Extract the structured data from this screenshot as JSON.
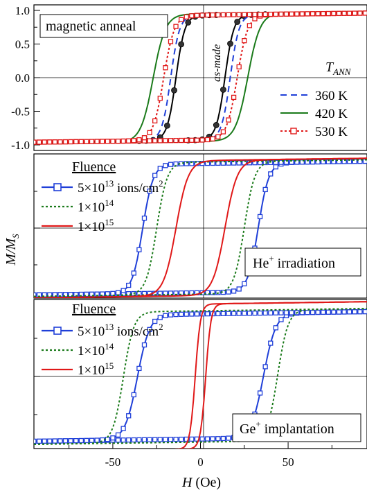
{
  "figure": {
    "ylabel_main": "M/M",
    "ylabel_sub": "S",
    "xlabel_main": "H",
    "xlabel_unit": " (Oe)",
    "colors": {
      "blue": "#1f3fd8",
      "green": "#1a7a1a",
      "red": "#e01818",
      "black": "#000000"
    }
  },
  "chart_data": [
    {
      "type": "line",
      "panel": "top",
      "annotation": "magnetic anneal",
      "curve_label": "as-made",
      "legend_title_main": "T",
      "legend_title_sub": "ANN",
      "xlim": [
        -95,
        95
      ],
      "ylim": [
        -1.05,
        1.05
      ],
      "yticks": [
        "1.0",
        "0.5",
        "0.0",
        "-0.5",
        "-1.0"
      ],
      "ytick_values": [
        1.0,
        0.5,
        0.0,
        -0.5,
        -1.0
      ],
      "series": [
        {
          "label": "as-made",
          "style": "solid-balls",
          "color": "#000000",
          "coercivity": 14,
          "width": 5,
          "ms": 0.93
        },
        {
          "name": "360 K",
          "style": "dashed",
          "color": "#1f3fd8",
          "coercivity": 17,
          "width": 5,
          "ms": 0.93
        },
        {
          "name": "420 K",
          "style": "solid",
          "color": "#1a7a1a",
          "coercivity": 27,
          "width": 7,
          "ms": 0.95
        },
        {
          "name": "530 K",
          "style": "dotted-squares",
          "color": "#e01818",
          "coercivity": 21,
          "width": 6,
          "ms": 0.93
        }
      ]
    },
    {
      "type": "line",
      "panel": "middle",
      "annotation_main": "He",
      "annotation_sup": "+",
      "annotation_rest": " irradiation",
      "legend_title": "Fluence",
      "xlim": [
        -95,
        95
      ],
      "ylim": [
        -1.05,
        1.05
      ],
      "series": [
        {
          "name_main": "5×10",
          "name_sup": "13",
          "name_unit": " ions/cm",
          "name_unit_sup": "2",
          "style": "solid-squares",
          "color": "#1f3fd8",
          "coercivity": 33,
          "width": 6,
          "ms": 0.88
        },
        {
          "name_main": "1×10",
          "name_sup": "14",
          "style": "dotted",
          "color": "#1a7a1a",
          "coercivity": 25,
          "width": 6,
          "ms": 0.9
        },
        {
          "name_main": "1×10",
          "name_sup": "15",
          "style": "solid",
          "color": "#e01818",
          "coercivity": 14,
          "width": 7,
          "ms": 0.92
        }
      ]
    },
    {
      "type": "line",
      "panel": "bottom",
      "annotation_main": "Ge",
      "annotation_sup": "+",
      "annotation_rest": " implantation",
      "legend_title": "Fluence",
      "xlim": [
        -95,
        95
      ],
      "ylim": [
        -1.05,
        1.05
      ],
      "xticks": [
        "-50",
        "0",
        "50"
      ],
      "xtick_values": [
        -50,
        0,
        50
      ],
      "series": [
        {
          "name_main": "5×10",
          "name_sup": "13",
          "name_unit": " ions/cm",
          "name_unit_sup": "2",
          "style": "solid-squares",
          "color": "#1f3fd8",
          "coercivity": 36,
          "width": 7,
          "ms": 0.82
        },
        {
          "name_main": "1×10",
          "name_sup": "14",
          "style": "dotted",
          "color": "#1a7a1a",
          "coercivity": 44,
          "width": 6,
          "ms": 0.86
        },
        {
          "name_main": "1×10",
          "name_sup": "15",
          "style": "solid",
          "color": "#e01818",
          "coercivity": 3,
          "width": 3,
          "ms": 0.95
        }
      ]
    }
  ]
}
